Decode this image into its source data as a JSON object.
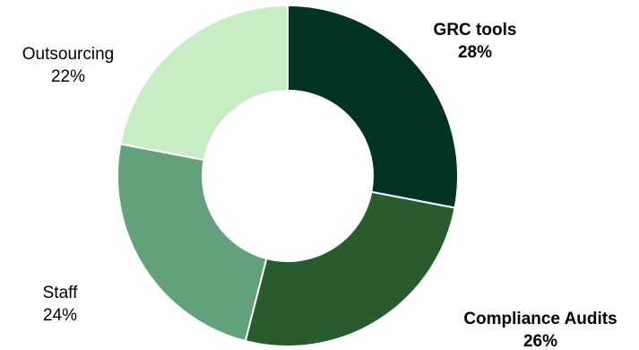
{
  "chart_data": {
    "type": "pie",
    "variant": "donut",
    "legend": "none",
    "slices": [
      {
        "label": "GRC tools",
        "value": 28,
        "value_label": "28%",
        "color": "#003324",
        "label_bold": true
      },
      {
        "label": "Compliance Audits",
        "value": 26,
        "value_label": "26%",
        "color": "#285b2d",
        "label_bold": true
      },
      {
        "label": "Staff",
        "value": 24,
        "value_label": "24%",
        "color": "#62a17a",
        "label_bold": false
      },
      {
        "label": "Outsourcing",
        "value": 22,
        "value_label": "22%",
        "color": "#c8ecc3",
        "label_bold": false
      }
    ]
  }
}
